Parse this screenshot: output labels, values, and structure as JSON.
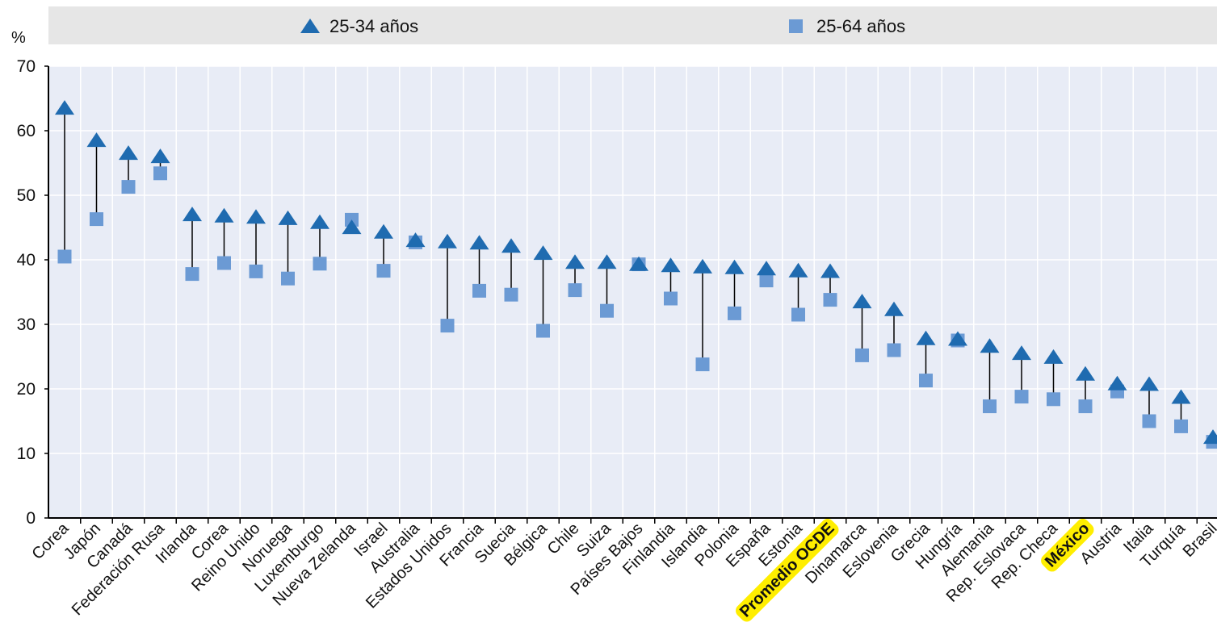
{
  "chart_data": {
    "type": "scatter",
    "unit_label": "%",
    "ylim": [
      0,
      70
    ],
    "yticks": [
      0,
      10,
      20,
      30,
      40,
      50,
      60,
      70
    ],
    "grid": true,
    "legend_position": "top",
    "legend": {
      "entries": [
        {
          "label": "25-34 años",
          "marker": "triangle",
          "color": "#1f6bb0"
        },
        {
          "label": "25-64 años",
          "marker": "square",
          "color": "#6b9ad4"
        }
      ]
    },
    "categories": [
      "Corea",
      "Japón",
      "Canadá",
      "Federación Rusa",
      "Irlanda",
      "Corea",
      "Reino Unido",
      "Noruega",
      "Luxemburgo",
      "Nueva Zelanda",
      "Israel",
      "Australia",
      "Estados Unidos",
      "Francia",
      "Suecia",
      "Bélgica",
      "Chile",
      "Suiza",
      "Países Bajos",
      "Finlandia",
      "Islandia",
      "Polonia",
      "España",
      "Estonia",
      "Promedio OCDE",
      "Dinamarca",
      "Eslovenia",
      "Grecia",
      "Hungría",
      "Alemania",
      "Rep. Eslovaca",
      "Rep. Checa",
      "México",
      "Austria",
      "Italia",
      "Turquía",
      "Brasil"
    ],
    "highlighted_categories": [
      "Promedio OCDE",
      "México"
    ],
    "series": [
      {
        "name": "25-34 años",
        "marker": "triangle",
        "values": [
          63.5,
          58.5,
          56.5,
          56.0,
          47.0,
          46.8,
          46.6,
          46.4,
          45.8,
          45.0,
          44.3,
          43.0,
          42.8,
          42.6,
          42.1,
          41.0,
          39.6,
          39.6,
          39.3,
          39.1,
          38.9,
          38.8,
          38.6,
          38.3,
          38.2,
          33.5,
          32.3,
          27.8,
          27.7,
          26.6,
          25.5,
          24.9,
          22.3,
          20.8,
          20.7,
          18.7,
          12.5
        ]
      },
      {
        "name": "25-64 años",
        "marker": "square",
        "values": [
          40.5,
          46.3,
          51.3,
          53.4,
          37.8,
          39.5,
          38.2,
          37.1,
          39.4,
          46.2,
          38.3,
          42.7,
          29.8,
          35.2,
          34.6,
          29.0,
          35.3,
          32.1,
          39.3,
          34.0,
          23.8,
          31.7,
          36.8,
          31.5,
          33.8,
          25.2,
          26.0,
          21.3,
          27.5,
          17.3,
          18.8,
          18.4,
          17.3,
          19.6,
          15.0,
          14.2,
          11.8
        ]
      }
    ],
    "colors": {
      "triangle": "#1f6bb0",
      "square": "#6b9ad4",
      "plot_background": "#e8ecf6",
      "grid": "#ffffff",
      "legend_background": "#e6e6e6",
      "highlight": "#ffee00"
    }
  }
}
